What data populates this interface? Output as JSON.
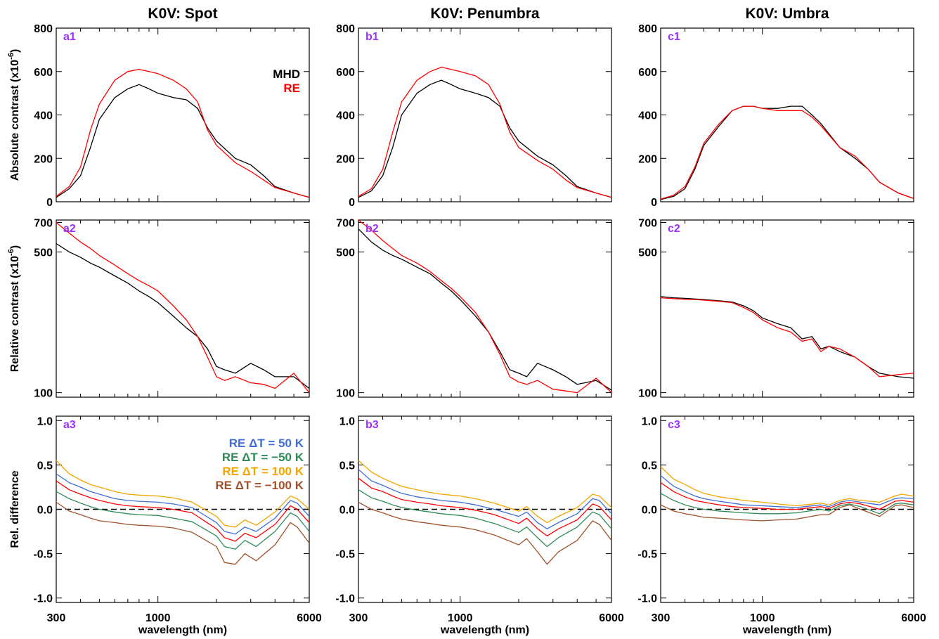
{
  "figure": {
    "column_titles": [
      "K0V: Spot",
      "K0V: Penumbra",
      "K0V: Umbra"
    ],
    "row_ylabels": [
      "Absolute contrast (x10",
      "Relative contrast (x10",
      "Rel. difference"
    ],
    "ylabel_suffix": ")",
    "ylabel_exponent": "-6",
    "xlabel": "wavelength (nm)",
    "x_ticks": [
      "300",
      "1000",
      "6000"
    ],
    "panel_labels": [
      [
        "a1",
        "a2",
        "a3"
      ],
      [
        "b1",
        "b2",
        "b3"
      ],
      [
        "c1",
        "c2",
        "c3"
      ]
    ],
    "legend_top": {
      "entries": [
        "MHD",
        "RE"
      ],
      "colors": [
        "#000000",
        "#ff0000"
      ]
    },
    "legend_bottom": {
      "entries": [
        "RE ΔT = 50 K",
        "RE ΔT = −50 K",
        "RE ΔT = 100 K",
        "RE ΔT = −100 K"
      ],
      "colors": [
        "#3f6fd6",
        "#2e8b57",
        "#f5a400",
        "#a0522d"
      ]
    },
    "label_color": "#9b30ff"
  },
  "chart_data": [
    {
      "type": "line",
      "row": 1,
      "xscale": "log",
      "xlim": [
        300,
        6000
      ],
      "ylim": [
        0,
        800
      ],
      "yticks": [
        "0",
        "200",
        "400",
        "600",
        "800"
      ],
      "x": [
        300,
        350,
        400,
        450,
        500,
        600,
        700,
        800,
        900,
        1000,
        1200,
        1400,
        1600,
        1800,
        2000,
        2500,
        3000,
        3500,
        4000,
        5000,
        6000
      ],
      "panels": [
        {
          "name": "a1",
          "series": [
            {
              "name": "MHD",
              "color": "#000000",
              "values": [
                20,
                60,
                120,
                250,
                380,
                480,
                520,
                540,
                520,
                500,
                480,
                470,
                430,
                340,
                280,
                200,
                170,
                120,
                70,
                40,
                20
              ]
            },
            {
              "name": "RE",
              "color": "#ff0000",
              "values": [
                25,
                70,
                160,
                330,
                450,
                560,
                600,
                610,
                600,
                590,
                560,
                520,
                460,
                330,
                260,
                180,
                140,
                100,
                65,
                40,
                20
              ]
            }
          ]
        },
        {
          "name": "b1",
          "series": [
            {
              "name": "MHD",
              "color": "#000000",
              "values": [
                20,
                50,
                120,
                250,
                400,
                500,
                540,
                560,
                540,
                520,
                500,
                480,
                440,
                340,
                280,
                210,
                170,
                120,
                70,
                40,
                20
              ]
            },
            {
              "name": "RE",
              "color": "#ff0000",
              "values": [
                25,
                60,
                150,
                320,
                460,
                560,
                600,
                620,
                610,
                600,
                580,
                540,
                450,
                320,
                250,
                190,
                150,
                100,
                65,
                40,
                20
              ]
            }
          ]
        },
        {
          "name": "c1",
          "series": [
            {
              "name": "MHD",
              "color": "#000000",
              "values": [
                10,
                25,
                60,
                150,
                260,
                350,
                420,
                440,
                440,
                430,
                430,
                440,
                440,
                400,
                360,
                250,
                200,
                150,
                90,
                40,
                15
              ]
            },
            {
              "name": "RE",
              "color": "#ff0000",
              "values": [
                12,
                30,
                70,
                160,
                270,
                360,
                420,
                440,
                440,
                430,
                420,
                420,
                420,
                390,
                350,
                250,
                210,
                150,
                90,
                40,
                15
              ]
            }
          ]
        }
      ]
    },
    {
      "type": "line",
      "row": 2,
      "xscale": "log",
      "yscale": "log",
      "xlim": [
        300,
        6000
      ],
      "ylim": [
        95,
        720
      ],
      "yticks": [
        "100",
        "500",
        "700"
      ],
      "x": [
        300,
        350,
        400,
        450,
        500,
        600,
        700,
        800,
        900,
        1000,
        1200,
        1400,
        1600,
        1800,
        2000,
        2200,
        2500,
        3000,
        3500,
        4000,
        5000,
        6000
      ],
      "panels": [
        {
          "name": "a2",
          "series": [
            {
              "name": "MHD",
              "color": "#000000",
              "values": [
                550,
                500,
                470,
                440,
                420,
                380,
                350,
                320,
                300,
                280,
                240,
                210,
                190,
                165,
                135,
                130,
                125,
                140,
                130,
                120,
                120,
                105
              ]
            },
            {
              "name": "RE",
              "color": "#ff0000",
              "values": [
                700,
                620,
                560,
                520,
                480,
                430,
                390,
                360,
                340,
                320,
                270,
                230,
                190,
                150,
                120,
                115,
                120,
                112,
                110,
                105,
                125,
                100
              ]
            }
          ]
        },
        {
          "name": "b2",
          "series": [
            {
              "name": "MHD",
              "color": "#000000",
              "values": [
                650,
                560,
                510,
                480,
                460,
                420,
                390,
                350,
                320,
                290,
                240,
                200,
                160,
                130,
                125,
                120,
                140,
                130,
                120,
                110,
                115,
                103
              ]
            },
            {
              "name": "RE",
              "color": "#ff0000",
              "values": [
                720,
                640,
                570,
                520,
                480,
                440,
                400,
                360,
                330,
                300,
                250,
                200,
                155,
                120,
                113,
                110,
                115,
                104,
                102,
                100,
                118,
                100
              ]
            }
          ]
        },
        {
          "name": "c2",
          "series": [
            {
              "name": "MHD",
              "color": "#000000",
              "values": [
                300,
                296,
                294,
                292,
                290,
                286,
                282,
                270,
                255,
                235,
                220,
                210,
                185,
                190,
                165,
                170,
                160,
                150,
                135,
                125,
                120,
                118
              ]
            },
            {
              "name": "RE",
              "color": "#ff0000",
              "values": [
                296,
                293,
                291,
                290,
                288,
                284,
                280,
                265,
                250,
                230,
                210,
                200,
                180,
                185,
                160,
                170,
                165,
                150,
                135,
                120,
                123,
                125
              ]
            }
          ]
        }
      ]
    },
    {
      "type": "line",
      "row": 3,
      "xscale": "log",
      "xlim": [
        300,
        6000
      ],
      "ylim": [
        -1.05,
        1.05
      ],
      "yticks": [
        "-1.0",
        "-0.5",
        "0.0",
        "0.5",
        "1.0"
      ],
      "x": [
        300,
        350,
        400,
        450,
        500,
        600,
        700,
        800,
        1000,
        1200,
        1500,
        2000,
        2200,
        2500,
        2800,
        3200,
        4000,
        4800,
        5200,
        6000
      ],
      "panels": [
        {
          "name": "a3",
          "series": [
            {
              "name": "RE ΔT = 50 K",
              "color": "#3f6fd6",
              "values": [
                0.4,
                0.3,
                0.25,
                0.2,
                0.17,
                0.12,
                0.1,
                0.09,
                0.08,
                0.06,
                0.02,
                -0.15,
                -0.25,
                -0.28,
                -0.2,
                -0.25,
                -0.1,
                0.1,
                0.07,
                -0.08
              ]
            },
            {
              "name": "RE",
              "color": "#ff0000",
              "values": [
                0.32,
                0.22,
                0.17,
                0.13,
                0.1,
                0.06,
                0.04,
                0.03,
                0.02,
                0.0,
                -0.04,
                -0.22,
                -0.32,
                -0.36,
                -0.27,
                -0.32,
                -0.17,
                0.04,
                0.0,
                -0.15
              ]
            },
            {
              "name": "RE ΔT = −50 K",
              "color": "#2e8b57",
              "values": [
                0.2,
                0.12,
                0.07,
                0.03,
                0.0,
                -0.03,
                -0.05,
                -0.06,
                -0.07,
                -0.1,
                -0.14,
                -0.3,
                -0.42,
                -0.45,
                -0.35,
                -0.42,
                -0.25,
                -0.04,
                -0.08,
                -0.25
              ]
            },
            {
              "name": "RE ΔT = 100 K",
              "color": "#f5a400",
              "values": [
                0.55,
                0.4,
                0.33,
                0.28,
                0.25,
                0.2,
                0.17,
                0.16,
                0.15,
                0.13,
                0.08,
                -0.08,
                -0.18,
                -0.2,
                -0.12,
                -0.18,
                -0.03,
                0.15,
                0.12,
                0.0
              ]
            },
            {
              "name": "RE ΔT = −100 K",
              "color": "#a0522d",
              "values": [
                0.08,
                -0.02,
                -0.06,
                -0.1,
                -0.13,
                -0.15,
                -0.17,
                -0.18,
                -0.19,
                -0.21,
                -0.26,
                -0.42,
                -0.6,
                -0.62,
                -0.5,
                -0.58,
                -0.4,
                -0.15,
                -0.2,
                -0.38
              ]
            }
          ]
        },
        {
          "name": "b3",
          "series": [
            {
              "name": "RE ΔT = 50 K",
              "color": "#3f6fd6",
              "values": [
                0.45,
                0.32,
                0.27,
                0.22,
                0.18,
                0.14,
                0.12,
                0.1,
                0.08,
                0.05,
                0.0,
                -0.08,
                -0.03,
                -0.15,
                -0.22,
                -0.15,
                -0.05,
                0.12,
                0.1,
                -0.05
              ]
            },
            {
              "name": "RE",
              "color": "#ff0000",
              "values": [
                0.35,
                0.24,
                0.2,
                0.15,
                0.11,
                0.08,
                0.06,
                0.04,
                0.02,
                -0.01,
                -0.06,
                -0.16,
                -0.1,
                -0.22,
                -0.3,
                -0.22,
                -0.12,
                0.06,
                0.03,
                -0.12
              ]
            },
            {
              "name": "RE ΔT = −50 K",
              "color": "#2e8b57",
              "values": [
                0.22,
                0.13,
                0.09,
                0.05,
                0.02,
                -0.01,
                -0.03,
                -0.05,
                -0.07,
                -0.1,
                -0.16,
                -0.26,
                -0.2,
                -0.32,
                -0.42,
                -0.32,
                -0.2,
                -0.03,
                -0.06,
                -0.22
              ]
            },
            {
              "name": "RE ΔT = 100 K",
              "color": "#f5a400",
              "values": [
                0.55,
                0.42,
                0.35,
                0.3,
                0.26,
                0.22,
                0.19,
                0.17,
                0.15,
                0.12,
                0.07,
                -0.02,
                0.03,
                -0.08,
                -0.15,
                -0.08,
                0.02,
                0.17,
                0.15,
                0.02
              ]
            },
            {
              "name": "RE ΔT = −100 K",
              "color": "#a0522d",
              "values": [
                0.08,
                0.0,
                -0.04,
                -0.08,
                -0.11,
                -0.14,
                -0.16,
                -0.18,
                -0.2,
                -0.23,
                -0.29,
                -0.4,
                -0.33,
                -0.48,
                -0.62,
                -0.48,
                -0.35,
                -0.13,
                -0.17,
                -0.35
              ]
            }
          ]
        },
        {
          "name": "c3",
          "series": [
            {
              "name": "RE ΔT = 50 K",
              "color": "#3f6fd6",
              "values": [
                0.38,
                0.26,
                0.2,
                0.15,
                0.12,
                0.09,
                0.07,
                0.05,
                0.04,
                0.03,
                0.02,
                0.05,
                0.03,
                0.08,
                0.1,
                0.08,
                0.05,
                0.12,
                0.13,
                0.12
              ]
            },
            {
              "name": "RE",
              "color": "#ff0000",
              "values": [
                0.3,
                0.2,
                0.14,
                0.1,
                0.08,
                0.05,
                0.03,
                0.02,
                0.01,
                0.0,
                0.0,
                0.03,
                0.01,
                0.06,
                0.08,
                0.06,
                0.0,
                0.09,
                0.1,
                0.08
              ]
            },
            {
              "name": "RE ΔT = −50 K",
              "color": "#2e8b57",
              "values": [
                0.18,
                0.1,
                0.05,
                0.02,
                0.0,
                -0.02,
                -0.03,
                -0.04,
                -0.05,
                -0.05,
                -0.04,
                0.0,
                -0.02,
                0.04,
                0.06,
                0.03,
                -0.05,
                0.06,
                0.07,
                0.05
              ]
            },
            {
              "name": "RE ΔT = 100 K",
              "color": "#f5a400",
              "values": [
                0.48,
                0.34,
                0.28,
                0.22,
                0.18,
                0.14,
                0.12,
                0.1,
                0.08,
                0.06,
                0.04,
                0.07,
                0.05,
                0.1,
                0.12,
                0.1,
                0.08,
                0.15,
                0.17,
                0.15
              ]
            },
            {
              "name": "RE ΔT = −100 K",
              "color": "#a0522d",
              "values": [
                0.05,
                -0.02,
                -0.05,
                -0.07,
                -0.09,
                -0.1,
                -0.11,
                -0.12,
                -0.13,
                -0.12,
                -0.11,
                -0.06,
                -0.06,
                0.02,
                0.05,
                0.0,
                -0.08,
                0.04,
                0.05,
                0.02
              ]
            }
          ]
        }
      ]
    }
  ]
}
